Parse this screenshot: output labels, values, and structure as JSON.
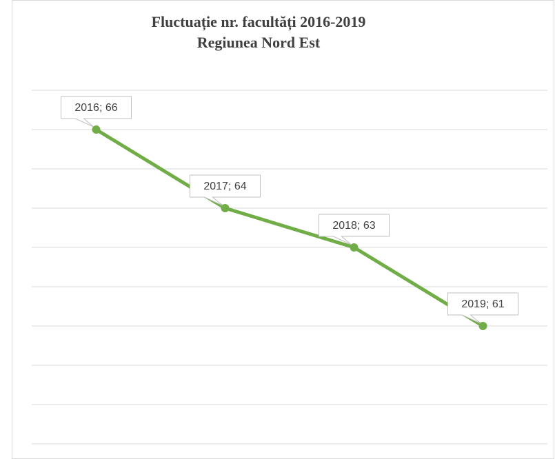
{
  "chart_data": {
    "type": "line",
    "title": "Fluctuație nr. facultăți 2016-2019",
    "subtitle": "Regiunea Nord Est",
    "categories": [
      "2016",
      "2017",
      "2018",
      "2019"
    ],
    "values": [
      66,
      64,
      63,
      61
    ],
    "value_labels": [
      "2016; 66",
      "2017; 64",
      "2018; 63",
      "2019; 61"
    ],
    "color": "#70ad47",
    "ylim": [
      58,
      67
    ],
    "yticks": [
      58,
      59,
      60,
      61,
      62,
      63,
      64,
      65,
      66,
      67
    ],
    "grid": true
  }
}
